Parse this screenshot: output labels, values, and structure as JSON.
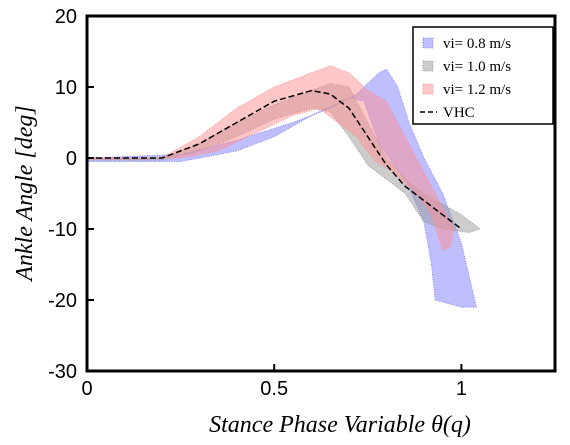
{
  "chart_data": {
    "type": "area-band",
    "xlabel": "Stance Phase Variable θ(q)",
    "ylabel": "Ankle Angle [deg]",
    "xlim": [
      0,
      1.25
    ],
    "ylim": [
      -30,
      20
    ],
    "xticks": [
      0,
      0.5,
      1
    ],
    "yticks": [
      -30,
      -20,
      -10,
      0,
      10,
      20
    ],
    "series": [
      {
        "name": "vi= 0.8 m/s",
        "color": "#7f7fff",
        "kind": "band",
        "x": [
          0,
          0.25,
          0.4,
          0.55,
          0.65,
          0.72,
          0.78,
          0.8,
          0.83,
          0.86,
          0.9,
          0.95,
          1.0,
          1.04,
          1.0,
          0.93,
          0.92,
          0.9,
          0.85,
          0.82,
          0.78,
          0.74,
          0.7,
          0.6,
          0.5,
          0.4,
          0.3,
          0.25,
          0
        ],
        "y": [
          0,
          0.5,
          2.5,
          5,
          7,
          9,
          12,
          12.5,
          10,
          5,
          0,
          -5,
          -12,
          -21,
          -21,
          -20,
          -15,
          -9,
          -3,
          -1,
          2,
          8,
          8.5,
          6,
          3,
          1,
          0,
          -0.5,
          -0.5
        ]
      },
      {
        "name": "vi= 1.0 m/s",
        "color": "#9a9a9a",
        "kind": "band",
        "x": [
          0,
          0.2,
          0.3,
          0.4,
          0.5,
          0.6,
          0.65,
          0.7,
          0.75,
          0.8,
          0.85,
          0.9,
          0.95,
          1.0,
          1.05,
          1.02,
          0.95,
          0.9,
          0.85,
          0.8,
          0.75,
          0.7,
          0.65,
          0.6,
          0.5,
          0.4,
          0.3,
          0.2,
          0
        ],
        "y": [
          0,
          0,
          2,
          5,
          7.5,
          9.5,
          10.5,
          10,
          5,
          0,
          -3,
          -5,
          -6.5,
          -8,
          -10,
          -10.5,
          -10,
          -9,
          -5,
          -3,
          -1,
          3,
          6.5,
          7,
          5.5,
          3,
          1,
          -0.3,
          -0.3
        ]
      },
      {
        "name": "vi= 1.2 m/s",
        "color": "#ff8f8f",
        "kind": "band",
        "x": [
          0,
          0.2,
          0.3,
          0.4,
          0.5,
          0.6,
          0.65,
          0.7,
          0.75,
          0.8,
          0.85,
          0.9,
          0.95,
          0.98,
          0.97,
          0.95,
          0.92,
          0.88,
          0.82,
          0.77,
          0.72,
          0.67,
          0.62,
          0.55,
          0.45,
          0.35,
          0.25,
          0
        ],
        "y": [
          0,
          0,
          3,
          7,
          10,
          12,
          13,
          12,
          9.5,
          8,
          3,
          -2,
          -7,
          -10,
          -12.5,
          -13,
          -8,
          -5,
          -2,
          -0.5,
          3,
          5,
          7,
          6,
          3.5,
          1,
          0,
          -0.2
        ]
      },
      {
        "name": "VHC",
        "color": "#000000",
        "kind": "line",
        "x": [
          0,
          0.2,
          0.3,
          0.4,
          0.5,
          0.6,
          0.65,
          0.7,
          0.75,
          0.8,
          0.85,
          0.9,
          0.95,
          1.0
        ],
        "y": [
          0,
          0,
          2,
          5,
          8,
          9.5,
          9,
          7,
          3,
          -1,
          -4,
          -6,
          -8,
          -10
        ]
      }
    ]
  }
}
